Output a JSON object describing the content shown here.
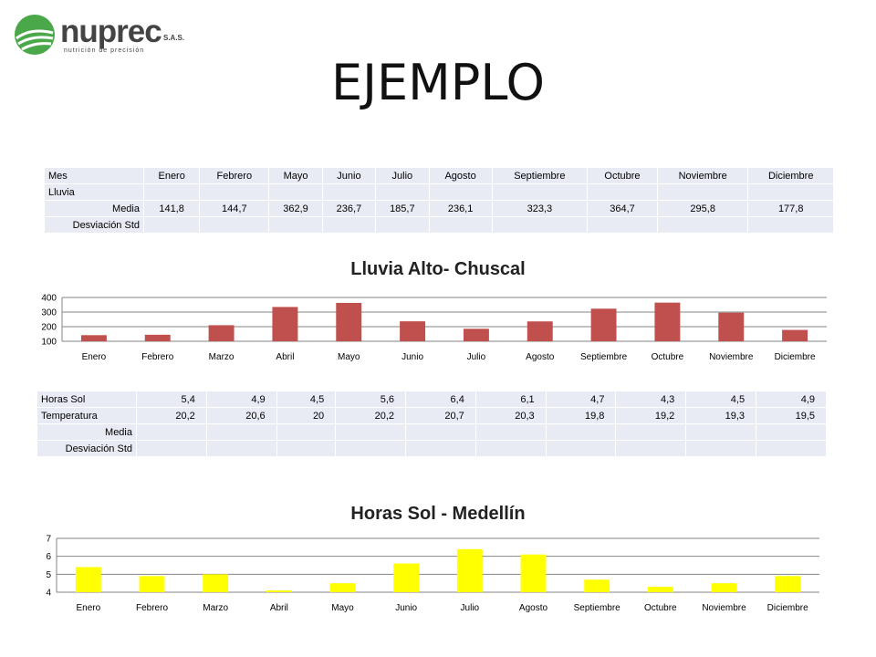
{
  "logo": {
    "word": "nuprec",
    "suffix": "S.A.S.",
    "tagline": "nutrición de precisión"
  },
  "title": "EJEMPLO",
  "table1": {
    "header": [
      "Mes",
      "Enero",
      "Febrero",
      "Mayo",
      "Junio",
      "Julio",
      "Agosto",
      "Septiembre",
      "Octubre",
      "Noviembre",
      "Diciembre"
    ],
    "rows": [
      [
        "Lluvia",
        "",
        "",
        "",
        "",
        "",
        "",
        "",
        "",
        "",
        ""
      ],
      [
        "Media",
        "141,8",
        "144,7",
        "362,9",
        "236,7",
        "185,7",
        "236,1",
        "323,3",
        "364,7",
        "295,8",
        "177,8"
      ],
      [
        "Desviación Std",
        "",
        "",
        "",
        "",
        "",
        "",
        "",
        "",
        "",
        ""
      ]
    ]
  },
  "table2": {
    "rows": [
      [
        "Horas Sol",
        "5,4",
        "4,9",
        "4,5",
        "5,6",
        "6,4",
        "6,1",
        "4,7",
        "4,3",
        "4,5",
        "4,9"
      ],
      [
        "Temperatura",
        "20,2",
        "20,6",
        "20",
        "20,2",
        "20,7",
        "20,3",
        "19,8",
        "19,2",
        "19,3",
        "19,5"
      ],
      [
        "Media",
        "",
        "",
        "",
        "",
        "",
        "",
        "",
        "",
        "",
        ""
      ],
      [
        "Desviación Std",
        "",
        "",
        "",
        "",
        "",
        "",
        "",
        "",
        "",
        ""
      ]
    ]
  },
  "chart_data": [
    {
      "type": "bar",
      "title": "Lluvia Alto- Chuscal",
      "categories": [
        "Enero",
        "Febrero",
        "Marzo",
        "Abril",
        "Mayo",
        "Junio",
        "Julio",
        "Agosto",
        "Septiembre",
        "Octubre",
        "Noviembre",
        "Diciembre"
      ],
      "values": [
        141.8,
        144.7,
        210,
        335,
        362.9,
        236.7,
        185.7,
        236.1,
        323.3,
        364.7,
        295.8,
        177.8
      ],
      "ylim": [
        100,
        400
      ],
      "yticks": [
        100,
        200,
        300,
        400
      ],
      "grid": true,
      "color": "#c0504d"
    },
    {
      "type": "bar",
      "title": "Horas Sol - Medellín",
      "categories": [
        "Enero",
        "Febrero",
        "Marzo",
        "Abril",
        "Mayo",
        "Junio",
        "Julio",
        "Agosto",
        "Septiembre",
        "Octubre",
        "Noviembre",
        "Diciembre"
      ],
      "values": [
        5.4,
        4.9,
        5.0,
        4.1,
        4.5,
        5.6,
        6.4,
        6.1,
        4.7,
        4.3,
        4.5,
        4.9
      ],
      "ylim": [
        4,
        7
      ],
      "yticks": [
        4,
        5,
        6,
        7
      ],
      "grid": true,
      "color": "#ffff00"
    }
  ]
}
